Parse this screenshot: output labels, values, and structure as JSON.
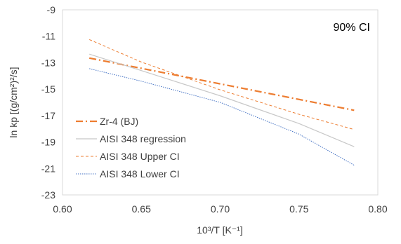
{
  "chart_data": {
    "type": "line",
    "title": "",
    "annotation": "90% CI",
    "xlabel": "10³/T [K⁻¹]",
    "ylabel": "ln kp [(g/cm²)²/s]",
    "xlim": [
      0.6,
      0.8
    ],
    "ylim": [
      -23,
      -9
    ],
    "xticks": [
      0.6,
      0.65,
      0.7,
      0.75,
      0.8
    ],
    "xtick_labels": [
      "0.60",
      "0.65",
      "0.70",
      "0.75",
      "0.80"
    ],
    "yticks": [
      -23,
      -21,
      -19,
      -17,
      -15,
      -13,
      -11,
      -9
    ],
    "ytick_labels": [
      "-23",
      "-21",
      "-19",
      "-17",
      "-15",
      "-13",
      "-11",
      "-9"
    ],
    "grid": false,
    "legend_position": "bottom-left",
    "series": [
      {
        "name": "Zr-4 (BJ)",
        "color": "#ED7D31",
        "style": "dash-dot",
        "points": [
          [
            0.617,
            -12.65
          ],
          [
            0.785,
            -16.6
          ]
        ]
      },
      {
        "name": "AISI 348 regression",
        "color": "#C8C8C8",
        "style": "solid",
        "points": [
          [
            0.617,
            -12.35
          ],
          [
            0.65,
            -13.6
          ],
          [
            0.7,
            -15.5
          ],
          [
            0.75,
            -17.6
          ],
          [
            0.785,
            -19.35
          ]
        ]
      },
      {
        "name": "AISI 348 Upper CI",
        "color": "#ED7D31",
        "style": "dashed",
        "points": [
          [
            0.617,
            -11.25
          ],
          [
            0.65,
            -12.95
          ],
          [
            0.7,
            -15.05
          ],
          [
            0.75,
            -16.9
          ],
          [
            0.785,
            -18.05
          ]
        ]
      },
      {
        "name": "AISI 348 Lower CI",
        "color": "#4472C4",
        "style": "dotted",
        "points": [
          [
            0.617,
            -13.45
          ],
          [
            0.65,
            -14.4
          ],
          [
            0.7,
            -16.0
          ],
          [
            0.75,
            -18.4
          ],
          [
            0.785,
            -20.75
          ]
        ]
      }
    ]
  }
}
